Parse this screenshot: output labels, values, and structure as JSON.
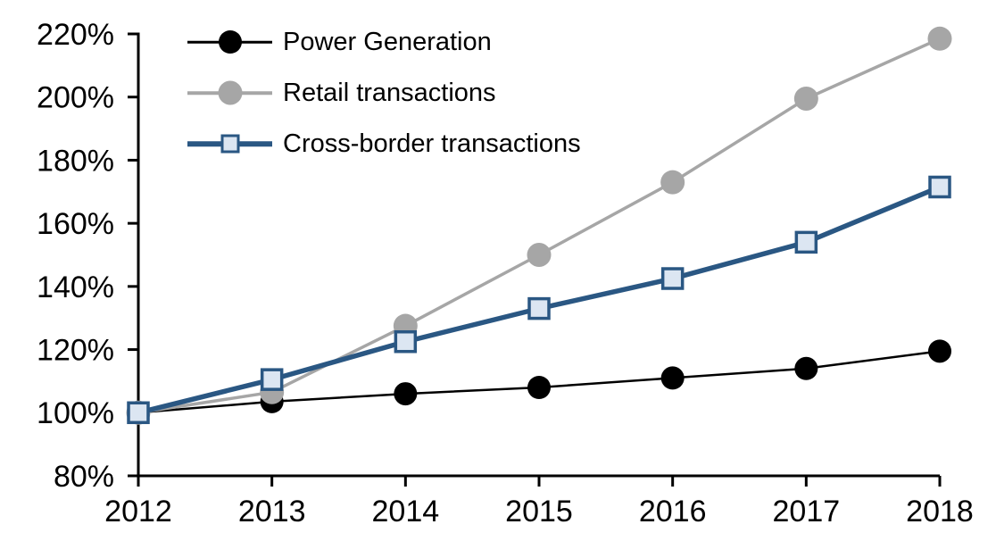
{
  "chart_data": {
    "type": "line",
    "title": "",
    "xlabel": "",
    "ylabel": "",
    "categories": [
      "2012",
      "2013",
      "2014",
      "2015",
      "2016",
      "2017",
      "2018"
    ],
    "series": [
      {
        "name": "Power Generation",
        "marker": "circle",
        "color": "#000000",
        "marker_fill": "#000000",
        "line_width": 2.5,
        "marker_size": 26,
        "values": [
          100,
          103.5,
          106,
          108,
          111,
          114,
          119.5
        ]
      },
      {
        "name": "Retail transactions",
        "marker": "circle",
        "color": "#a6a6a6",
        "marker_fill": "#a6a6a6",
        "line_width": 3.5,
        "marker_size": 27,
        "values": [
          100,
          106.5,
          127.5,
          150,
          173,
          199.5,
          218.5
        ]
      },
      {
        "name": "Cross-border transactions",
        "marker": "square",
        "color": "#2a5783",
        "marker_fill": "#dce6f2",
        "marker_border_width": 3.5,
        "line_width": 5.5,
        "marker_size": 22,
        "values": [
          100,
          110.5,
          122.5,
          133,
          142.5,
          154,
          171.5
        ]
      }
    ],
    "ylim": [
      80,
      220
    ],
    "ytick_step": 20,
    "ytick_labels": [
      "80%",
      "100%",
      "120%",
      "140%",
      "160%",
      "180%",
      "200%",
      "220%"
    ],
    "xtick_labels": [
      "2012",
      "2013",
      "2014",
      "2015",
      "2016",
      "2017",
      "2018"
    ],
    "grid": false,
    "legend_position": "top-left",
    "axis_color": "#000000",
    "background": "#ffffff"
  }
}
